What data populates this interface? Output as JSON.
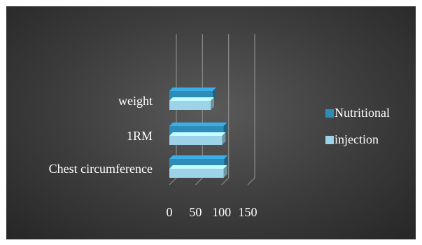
{
  "chart_data": {
    "type": "bar",
    "orientation": "horizontal",
    "three_d": true,
    "categories": [
      "Chest circumference",
      "1RM",
      "weight"
    ],
    "series": [
      {
        "name": "Nutritional",
        "values": [
          105,
          104,
          83
        ],
        "color": "#2e8cb8"
      },
      {
        "name": "injection",
        "values": [
          104,
          101,
          79
        ],
        "color": "#9cd3e8"
      }
    ],
    "xlim": [
      0,
      150
    ],
    "x_ticks": [
      "0",
      "50",
      "100",
      "150"
    ],
    "grid": true,
    "legend_position": "right"
  }
}
